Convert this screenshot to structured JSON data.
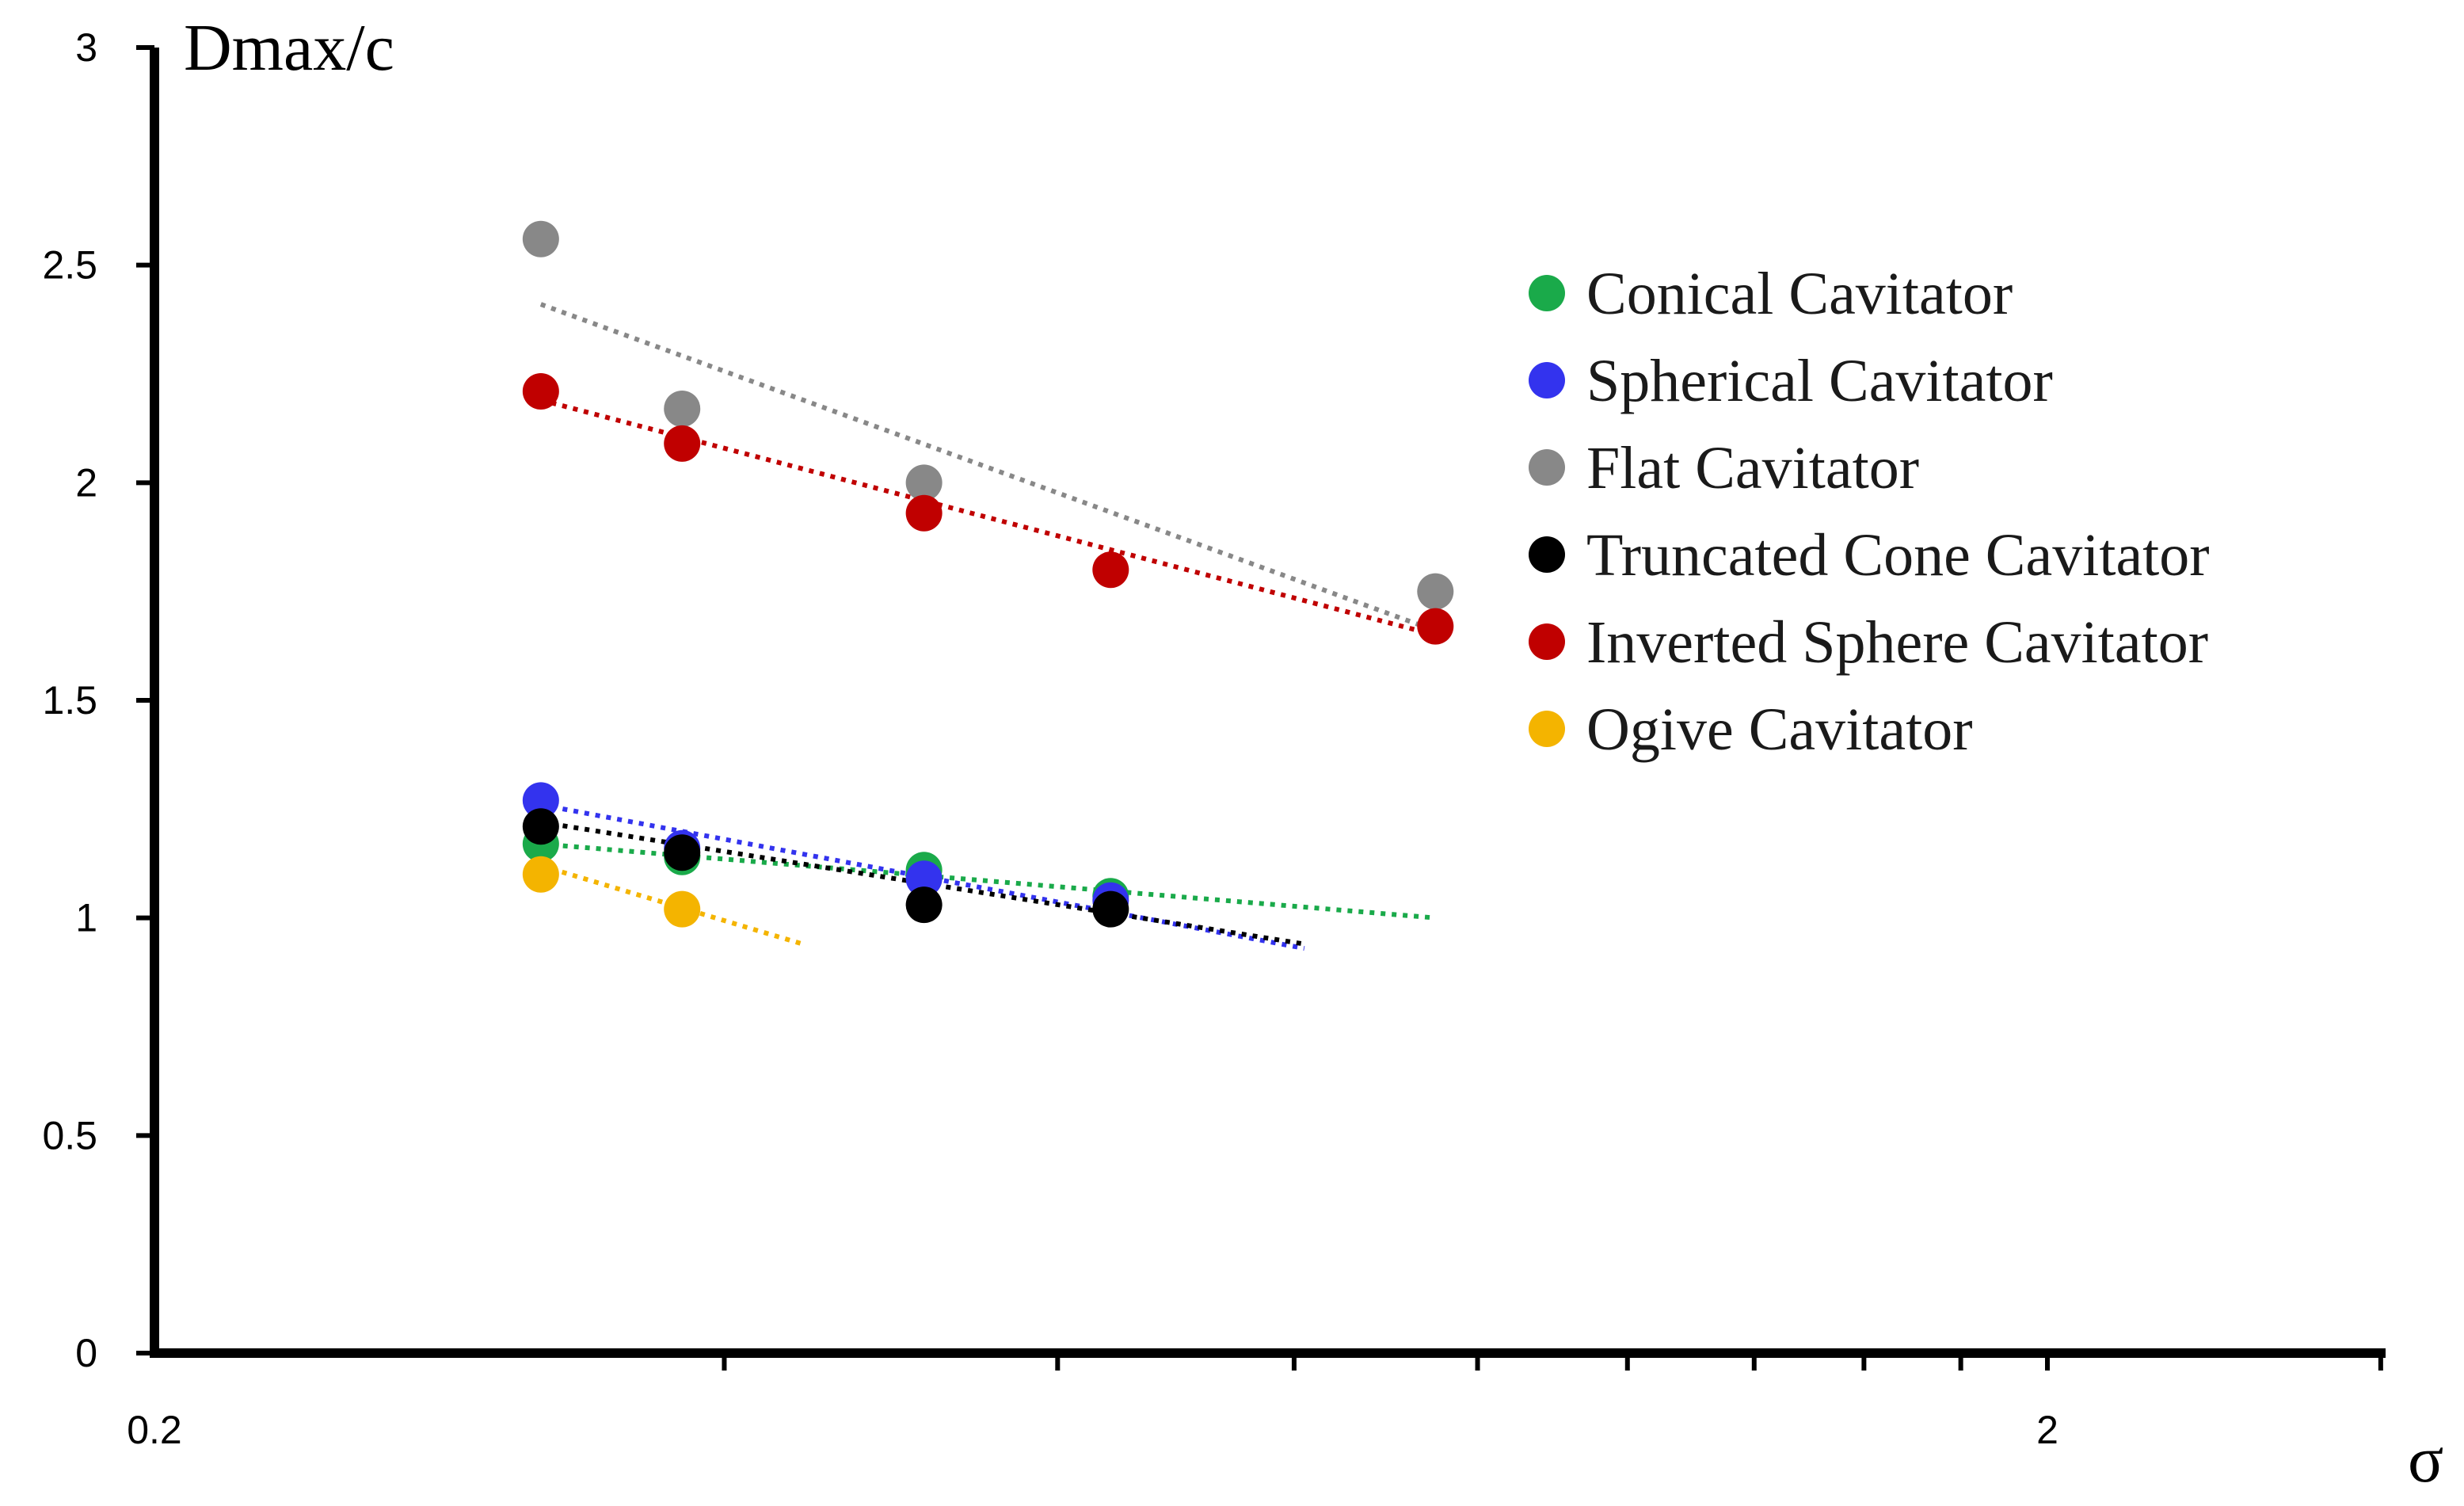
{
  "chart_data": {
    "type": "scatter",
    "title": "",
    "xlabel": "σ",
    "ylabel": "Dmax/c",
    "x_scale": "log",
    "xlim": [
      0.2,
      3.0
    ],
    "ylim": [
      0,
      3
    ],
    "x_tick_labels": [
      {
        "value": 0.2,
        "label": "0.2"
      },
      {
        "value": 2,
        "label": "2"
      }
    ],
    "x_minor_ticks": [
      0.4,
      0.6,
      0.8,
      1.0,
      1.2,
      1.4,
      1.6,
      1.8,
      2.0,
      3.0
    ],
    "y_ticks": [
      {
        "value": 0,
        "label": "0"
      },
      {
        "value": 0.5,
        "label": "0.5"
      },
      {
        "value": 1,
        "label": "1"
      },
      {
        "value": 1.5,
        "label": "1.5"
      },
      {
        "value": 2,
        "label": "2"
      },
      {
        "value": 2.5,
        "label": "2.5"
      },
      {
        "value": 3,
        "label": "3"
      }
    ],
    "legend_position": "top-right",
    "series": [
      {
        "name": "Conical Cavitator",
        "color": "#1aaa4a",
        "points": [
          [
            0.32,
            1.17
          ],
          [
            0.38,
            1.14
          ],
          [
            0.51,
            1.11
          ],
          [
            0.64,
            1.05
          ]
        ],
        "trendline": [
          [
            0.32,
            1.17
          ],
          [
            0.95,
            1.0
          ]
        ]
      },
      {
        "name": "Spherical Cavitator",
        "color": "#3333ee",
        "points": [
          [
            0.32,
            1.27
          ],
          [
            0.38,
            1.16
          ],
          [
            0.51,
            1.09
          ],
          [
            0.64,
            1.04
          ]
        ],
        "trendline": [
          [
            0.32,
            1.26
          ],
          [
            0.81,
            0.93
          ]
        ]
      },
      {
        "name": "Flat Cavitator",
        "color": "#888888",
        "points": [
          [
            0.32,
            2.56
          ],
          [
            0.38,
            2.17
          ],
          [
            0.51,
            2.0
          ],
          [
            0.95,
            1.75
          ]
        ],
        "trendline": [
          [
            0.32,
            2.41
          ],
          [
            0.95,
            1.66
          ]
        ]
      },
      {
        "name": "Truncated Cone Cavitator",
        "color": "#000000",
        "points": [
          [
            0.32,
            1.21
          ],
          [
            0.38,
            1.15
          ],
          [
            0.51,
            1.03
          ],
          [
            0.64,
            1.02
          ]
        ],
        "trendline": [
          [
            0.32,
            1.22
          ],
          [
            0.81,
            0.94
          ]
        ]
      },
      {
        "name": "Inverted Sphere Cavitator",
        "color": "#c00000",
        "points": [
          [
            0.32,
            2.21
          ],
          [
            0.38,
            2.09
          ],
          [
            0.51,
            1.93
          ],
          [
            0.64,
            1.8
          ],
          [
            0.95,
            1.67
          ]
        ],
        "trendline": [
          [
            0.32,
            2.19
          ],
          [
            0.95,
            1.65
          ]
        ]
      },
      {
        "name": "Ogive Cavitator",
        "color": "#f4b400",
        "points": [
          [
            0.32,
            1.1
          ],
          [
            0.38,
            1.02
          ]
        ],
        "trendline": [
          [
            0.32,
            1.12
          ],
          [
            0.44,
            0.94
          ]
        ]
      }
    ]
  }
}
